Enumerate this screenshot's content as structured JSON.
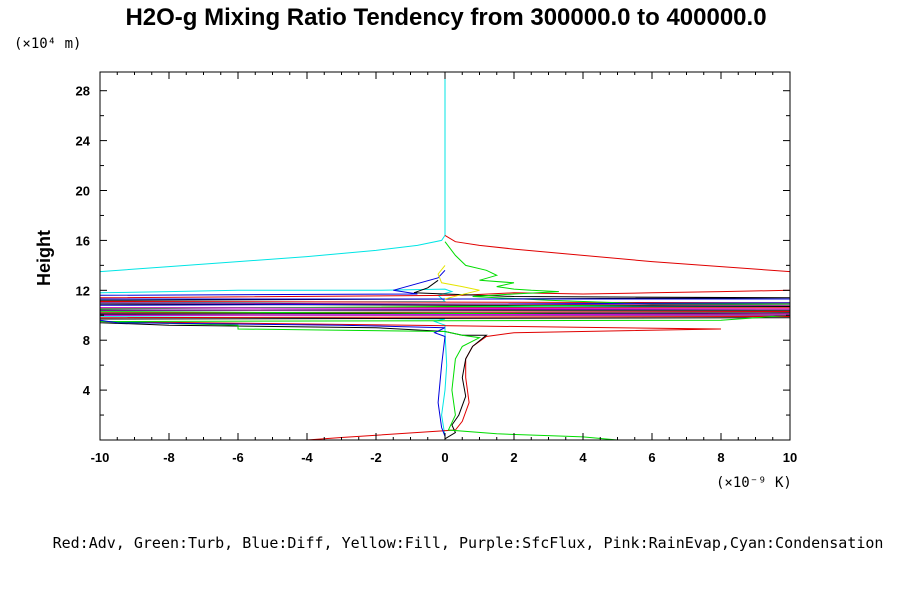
{
  "chart_data": {
    "type": "line",
    "title": "H2O-g Mixing Ratio Tendency from 300000.0 to 400000.0",
    "ylabel": "Height",
    "y_unit": "(×10⁴ m)",
    "x_unit": "(×10⁻⁹ K)",
    "legend_text": "Red:Adv, Green:Turb, Blue:Diff, Yellow:Fill, Purple:SfcFlux, Pink:RainEvap,Cyan:Condensation",
    "xlim": [
      -10,
      10
    ],
    "ylim": [
      0,
      29.5
    ],
    "x_ticks": [
      -10,
      -8,
      -6,
      -4,
      -2,
      0,
      2,
      4,
      6,
      8,
      10
    ],
    "x_tick_labels": [
      "-10",
      "-8",
      "-6",
      "-4",
      "-2",
      "0",
      "2",
      "4",
      "6",
      "8",
      "10"
    ],
    "y_ticks": [
      4,
      8,
      12,
      16,
      20,
      24,
      28
    ],
    "y_tick_labels": [
      "4",
      "8",
      "12",
      "16",
      "20",
      "24",
      "28"
    ],
    "series": [
      {
        "name": "Cyan:Condensation",
        "color": "#00e5e5",
        "points": [
          [
            0,
            29.5
          ],
          [
            0,
            16.4
          ],
          [
            -0.1,
            16.0
          ],
          [
            -0.8,
            15.6
          ],
          [
            -2,
            15.2
          ],
          [
            -4,
            14.7
          ],
          [
            -6,
            14.3
          ],
          [
            -8,
            13.9
          ],
          [
            -10,
            13.5
          ],
          [
            -10,
            11.8
          ],
          [
            -8,
            11.9
          ],
          [
            -6,
            12.0
          ],
          [
            -4,
            12.0
          ],
          [
            -2,
            12.0
          ],
          [
            0,
            12.1
          ],
          [
            0.2,
            11.9
          ],
          [
            -0.2,
            11.6
          ],
          [
            0,
            11.1
          ],
          [
            -10,
            11.0
          ],
          [
            -10,
            10.6
          ],
          [
            10,
            10.7
          ],
          [
            10,
            10.3
          ],
          [
            -10,
            10.2
          ],
          [
            -10,
            9.9
          ],
          [
            0,
            9.7
          ],
          [
            -0.3,
            9.5
          ],
          [
            0,
            9.2
          ],
          [
            0,
            8.6
          ],
          [
            0.05,
            6
          ],
          [
            0,
            4
          ],
          [
            -0.1,
            2
          ],
          [
            0,
            0.3
          ],
          [
            0,
            0
          ]
        ]
      },
      {
        "name": "Red:Adv",
        "color": "#e00000",
        "points": [
          [
            0,
            16.4
          ],
          [
            0.3,
            15.9
          ],
          [
            1,
            15.6
          ],
          [
            2,
            15.3
          ],
          [
            4,
            14.8
          ],
          [
            6,
            14.3
          ],
          [
            8,
            13.9
          ],
          [
            10,
            13.5
          ],
          [
            10,
            12.0
          ],
          [
            8,
            11.9
          ],
          [
            6,
            11.8
          ],
          [
            4,
            11.7
          ],
          [
            2,
            11.8
          ],
          [
            0.5,
            11.6
          ],
          [
            -10,
            11.4
          ],
          [
            -10,
            11.1
          ],
          [
            10,
            11.0
          ],
          [
            10,
            10.6
          ],
          [
            -10,
            10.6
          ],
          [
            -10,
            10.2
          ],
          [
            10,
            10.3
          ],
          [
            10,
            9.9
          ],
          [
            -10,
            9.8
          ],
          [
            -10,
            9.5
          ],
          [
            8,
            8.9
          ],
          [
            2,
            8.6
          ],
          [
            1.2,
            8.3
          ],
          [
            0.8,
            7.5
          ],
          [
            0.6,
            6.5
          ],
          [
            0.6,
            5
          ],
          [
            0.7,
            3
          ],
          [
            0.5,
            1.5
          ],
          [
            0.3,
            0.8
          ],
          [
            -3,
            0.2
          ],
          [
            -4,
            0
          ],
          [
            -10,
            0
          ]
        ]
      },
      {
        "name": "Black",
        "color": "#000000",
        "points": [
          [
            -0.2,
            12.8
          ],
          [
            -0.5,
            12.2
          ],
          [
            -0.9,
            11.8
          ],
          [
            0,
            11.7
          ],
          [
            2,
            11.5
          ],
          [
            10,
            11.4
          ],
          [
            -10,
            11.2
          ],
          [
            -10,
            10.9
          ],
          [
            10,
            10.7
          ],
          [
            10,
            10.4
          ],
          [
            -10,
            10.4
          ],
          [
            -10,
            10.1
          ],
          [
            10,
            10.2
          ],
          [
            10,
            9.8
          ],
          [
            -10,
            9.7
          ],
          [
            -10,
            9.4
          ],
          [
            -8,
            9.2
          ],
          [
            -2,
            9.0
          ],
          [
            0,
            8.7
          ],
          [
            0.5,
            8.4
          ],
          [
            1.2,
            8.4
          ],
          [
            0.8,
            7.5
          ],
          [
            0.6,
            6.5
          ],
          [
            0.5,
            5
          ],
          [
            0.6,
            3.5
          ],
          [
            0.4,
            2
          ],
          [
            0.2,
            1.2
          ],
          [
            0.3,
            0.6
          ],
          [
            0,
            0.1
          ]
        ]
      },
      {
        "name": "Green:Turb",
        "color": "#00dd00",
        "points": [
          [
            0,
            15.9
          ],
          [
            0.3,
            14.8
          ],
          [
            0.6,
            14.0
          ],
          [
            1.2,
            13.6
          ],
          [
            1.5,
            13.2
          ],
          [
            1.0,
            12.8
          ],
          [
            2.0,
            12.6
          ],
          [
            1.5,
            12.3
          ],
          [
            2.0,
            12.1
          ],
          [
            2.5,
            12.0
          ],
          [
            3.3,
            11.9
          ],
          [
            2.0,
            11.7
          ],
          [
            0.8,
            11.5
          ],
          [
            3,
            11.2
          ],
          [
            6,
            10.9
          ],
          [
            10,
            10.9
          ],
          [
            -10,
            10.5
          ],
          [
            -10,
            10.3
          ],
          [
            10,
            10.0
          ],
          [
            8,
            9.6
          ],
          [
            -10,
            9.5
          ],
          [
            -6,
            9.2
          ],
          [
            -6,
            8.9
          ],
          [
            -3,
            8.8
          ],
          [
            0,
            8.7
          ],
          [
            0.5,
            8.4
          ],
          [
            1.0,
            8.2
          ],
          [
            0.5,
            7.5
          ],
          [
            0.3,
            6.5
          ],
          [
            0.2,
            4
          ],
          [
            0.3,
            2
          ],
          [
            0.1,
            0.8
          ],
          [
            1.5,
            0.5
          ],
          [
            3.5,
            0.3
          ],
          [
            4,
            0.25
          ],
          [
            5,
            0
          ]
        ]
      },
      {
        "name": "Blue:Diff",
        "color": "#0000dd",
        "points": [
          [
            0,
            13.6
          ],
          [
            -0.2,
            13.0
          ],
          [
            -1.5,
            12.0
          ],
          [
            -0.8,
            11.7
          ],
          [
            -10,
            11.6
          ],
          [
            -10,
            11.3
          ],
          [
            10,
            11.3
          ],
          [
            10,
            11.0
          ],
          [
            -10,
            10.8
          ],
          [
            -10,
            10.4
          ],
          [
            10,
            10.5
          ],
          [
            10,
            10.1
          ],
          [
            -10,
            10.0
          ],
          [
            -10,
            9.7
          ],
          [
            -10,
            9.6
          ],
          [
            -9.5,
            9.4
          ],
          [
            -3,
            9.2
          ],
          [
            0,
            9.0
          ],
          [
            -0.3,
            8.6
          ],
          [
            0,
            8.3
          ],
          [
            -0.1,
            6
          ],
          [
            -0.2,
            3
          ],
          [
            -0.1,
            1
          ],
          [
            0,
            0.3
          ],
          [
            0,
            0
          ]
        ]
      },
      {
        "name": "Yellow:Fill",
        "color": "#e5e500",
        "points": [
          [
            0,
            14.0
          ],
          [
            -0.2,
            13.3
          ],
          [
            -0.1,
            12.6
          ],
          [
            0.5,
            12.3
          ],
          [
            1.0,
            12.0
          ],
          [
            0.4,
            11.6
          ],
          [
            0,
            11.3
          ]
        ]
      },
      {
        "name": "Purple:SfcFlux",
        "color": "#880088",
        "points": [
          [
            -10,
            11.0
          ],
          [
            10,
            10.8
          ],
          [
            10,
            10.5
          ],
          [
            -10,
            10.4
          ],
          [
            -10,
            10.0
          ],
          [
            10,
            10.0
          ]
        ]
      },
      {
        "name": "Pink:RainEvap",
        "color": "#e000e0",
        "points": [
          [
            -10,
            10.6
          ],
          [
            10,
            10.5
          ],
          [
            10,
            10.1
          ],
          [
            -10,
            10.0
          ],
          [
            -10,
            0
          ],
          [
            10,
            0
          ]
        ]
      }
    ]
  }
}
